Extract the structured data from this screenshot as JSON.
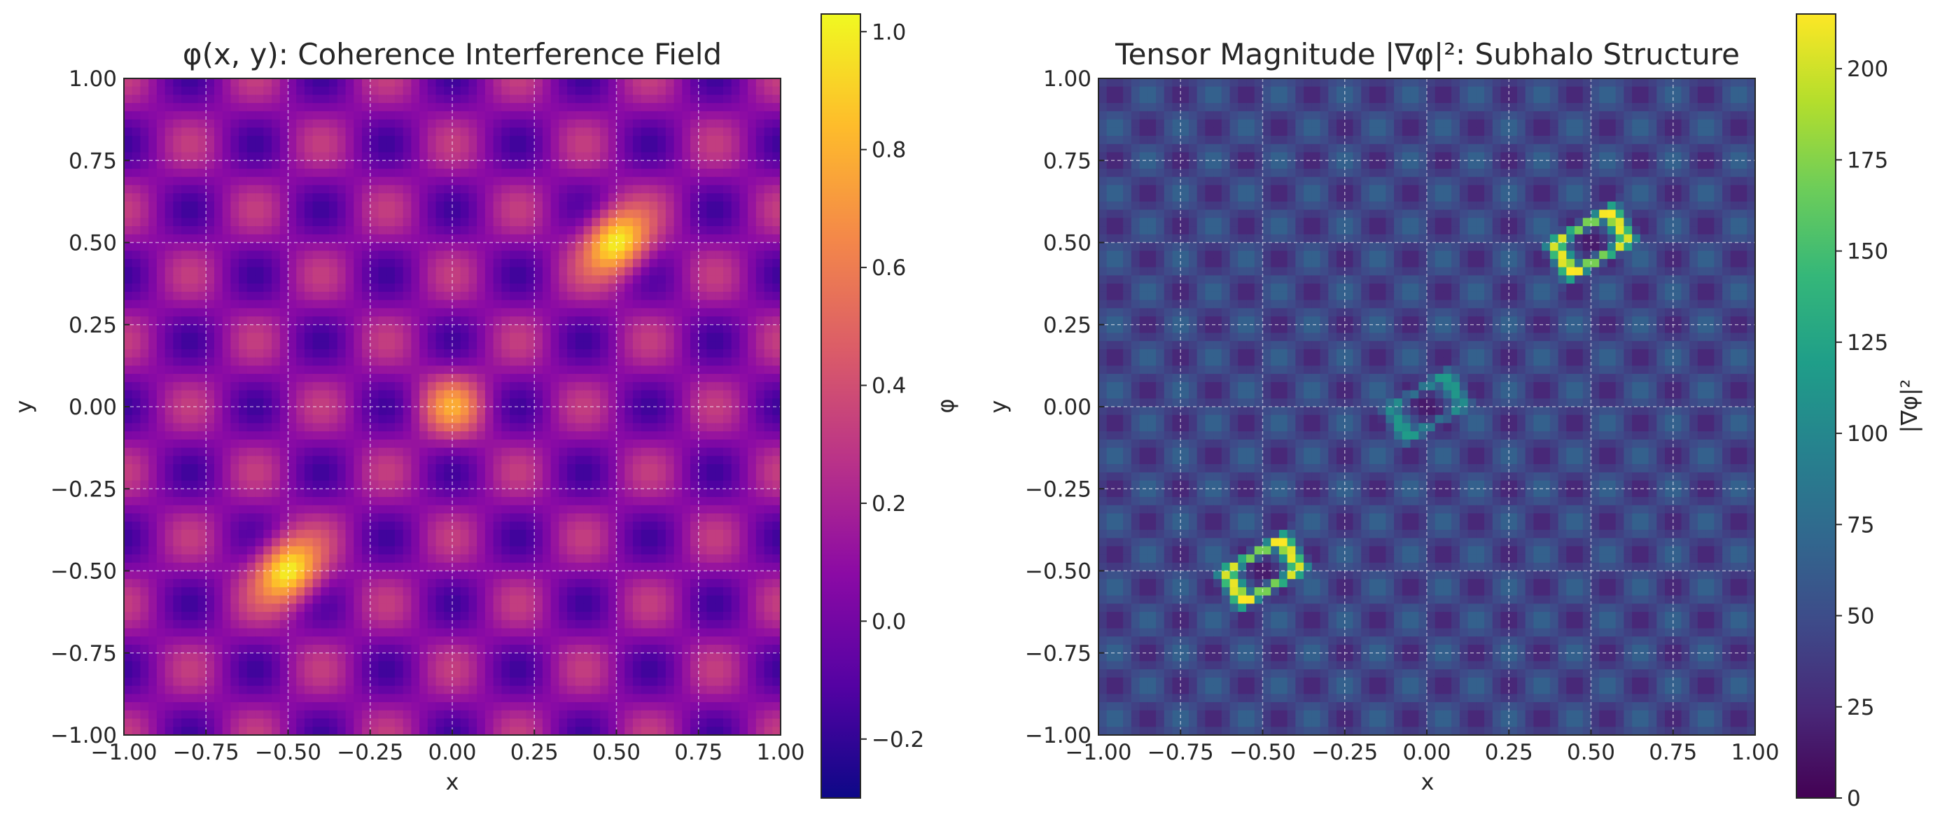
{
  "chart_data": [
    {
      "type": "heatmap",
      "title": "φ(x, y): Coherence Interference Field",
      "xlabel": "x",
      "ylabel": "y",
      "xlim": [
        -1.0,
        1.0
      ],
      "ylim": [
        -1.0,
        1.0
      ],
      "x_ticks": [
        "−1.00",
        "−0.75",
        "−0.50",
        "−0.25",
        "0.00",
        "0.25",
        "0.50",
        "0.75",
        "1.00"
      ],
      "y_ticks": [
        "1.00",
        "0.75",
        "0.50",
        "0.25",
        "0.00",
        "−0.25",
        "−0.50",
        "−0.75",
        "−1.00"
      ],
      "tick_values": [
        -1.0,
        -0.75,
        -0.5,
        -0.25,
        0.0,
        0.25,
        0.5,
        0.75,
        1.0
      ],
      "colormap": "plasma",
      "colorbar": {
        "label": "φ",
        "range": [
          -0.3,
          1.03
        ],
        "tick_values": [
          -0.2,
          0.0,
          0.2,
          0.4,
          0.6,
          0.8,
          1.0
        ],
        "tick_labels": [
          "−0.2",
          "0.0",
          "0.2",
          "0.4",
          "0.6",
          "0.8",
          "1.0"
        ]
      },
      "grid": true,
      "field": {
        "background_checkerboard_period": 0.2,
        "background_amplitude": 0.25,
        "background_offset": 0.08,
        "peaks": [
          {
            "x": 0.5,
            "y": 0.5,
            "peak_value": 1.0
          },
          {
            "x": 0.0,
            "y": 0.0,
            "peak_value": 0.55
          },
          {
            "x": -0.5,
            "y": -0.5,
            "peak_value": 1.0
          }
        ]
      }
    },
    {
      "type": "heatmap",
      "title": "Tensor Magnitude |∇φ|²: Subhalo Structure",
      "xlabel": "x",
      "ylabel": "y",
      "xlim": [
        -1.0,
        1.0
      ],
      "ylim": [
        -1.0,
        1.0
      ],
      "x_ticks": [
        "−1.00",
        "−0.75",
        "−0.50",
        "−0.25",
        "0.00",
        "0.25",
        "0.50",
        "0.75",
        "1.00"
      ],
      "y_ticks": [
        "1.00",
        "0.75",
        "0.50",
        "0.25",
        "0.00",
        "−0.25",
        "−0.50",
        "−0.75",
        "−1.00"
      ],
      "tick_values": [
        -1.0,
        -0.75,
        -0.5,
        -0.25,
        0.0,
        0.25,
        0.5,
        0.75,
        1.0
      ],
      "colormap": "viridis",
      "colorbar": {
        "label": "|∇φ|²",
        "range": [
          0,
          215
        ],
        "tick_values": [
          0,
          25,
          50,
          75,
          100,
          125,
          150,
          175,
          200
        ],
        "tick_labels": [
          "0",
          "25",
          "50",
          "75",
          "100",
          "125",
          "150",
          "175",
          "200"
        ]
      },
      "grid": true,
      "field": {
        "background_level": 45,
        "background_variation": 25,
        "rings": [
          {
            "x": 0.5,
            "y": 0.5,
            "peak_value": 210
          },
          {
            "x": 0.0,
            "y": 0.0,
            "peak_value": 110
          },
          {
            "x": -0.5,
            "y": -0.5,
            "peak_value": 210
          }
        ]
      }
    }
  ]
}
